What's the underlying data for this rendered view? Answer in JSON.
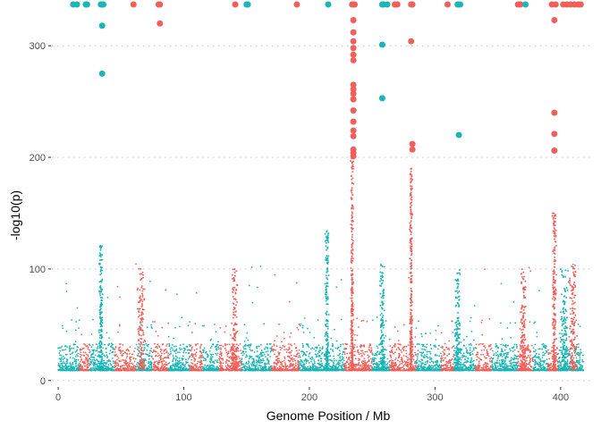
{
  "chart_data": {
    "type": "scatter",
    "title": "",
    "xlabel": "Genome Position / Mb",
    "ylabel": "-log10(p)",
    "xlim": [
      -5,
      425
    ],
    "ylim": [
      -5,
      337
    ],
    "x_ticks": [
      0,
      100,
      200,
      300,
      400
    ],
    "y_ticks": [
      0,
      100,
      200,
      300
    ],
    "grid": {
      "horizontal": true,
      "vertical": false,
      "style": "dotted"
    },
    "legend": "none",
    "colors": {
      "teal": "#1ab5b5",
      "red": "#f0605a"
    },
    "chromosome_bands": [
      {
        "start": 0,
        "end": 17,
        "color": "teal"
      },
      {
        "start": 17,
        "end": 25,
        "color": "red"
      },
      {
        "start": 25,
        "end": 45,
        "color": "teal"
      },
      {
        "start": 45,
        "end": 62,
        "color": "red"
      },
      {
        "start": 62,
        "end": 75,
        "color": "teal"
      },
      {
        "start": 75,
        "end": 88,
        "color": "red"
      },
      {
        "start": 88,
        "end": 105,
        "color": "teal"
      },
      {
        "start": 105,
        "end": 115,
        "color": "red"
      },
      {
        "start": 115,
        "end": 128,
        "color": "teal"
      },
      {
        "start": 128,
        "end": 146,
        "color": "red"
      },
      {
        "start": 146,
        "end": 170,
        "color": "teal"
      },
      {
        "start": 170,
        "end": 192,
        "color": "red"
      },
      {
        "start": 192,
        "end": 228,
        "color": "teal"
      },
      {
        "start": 228,
        "end": 250,
        "color": "red"
      },
      {
        "start": 250,
        "end": 264,
        "color": "teal"
      },
      {
        "start": 264,
        "end": 275,
        "color": "red"
      },
      {
        "start": 275,
        "end": 285,
        "color": "red"
      },
      {
        "start": 285,
        "end": 305,
        "color": "teal"
      },
      {
        "start": 305,
        "end": 315,
        "color": "red"
      },
      {
        "start": 315,
        "end": 332,
        "color": "teal"
      },
      {
        "start": 332,
        "end": 345,
        "color": "red"
      },
      {
        "start": 345,
        "end": 366,
        "color": "teal"
      },
      {
        "start": 366,
        "end": 378,
        "color": "red"
      },
      {
        "start": 378,
        "end": 390,
        "color": "teal"
      },
      {
        "start": 390,
        "end": 398,
        "color": "red"
      },
      {
        "start": 398,
        "end": 418,
        "color": "teal"
      }
    ],
    "peaks": [
      {
        "x": 34,
        "max": 122,
        "w": 1.2,
        "color": "teal"
      },
      {
        "x": 66,
        "max": 101,
        "w": 2.5,
        "color": "red"
      },
      {
        "x": 140,
        "max": 100,
        "w": 2.0,
        "color": "red"
      },
      {
        "x": 214,
        "max": 135,
        "w": 1.2,
        "color": "teal"
      },
      {
        "x": 234,
        "max": 200,
        "w": 0.9,
        "color": "red"
      },
      {
        "x": 258,
        "max": 105,
        "w": 1.5,
        "color": "teal"
      },
      {
        "x": 281,
        "max": 190,
        "w": 0.9,
        "color": "red"
      },
      {
        "x": 318,
        "max": 100,
        "w": 2.0,
        "color": "teal"
      },
      {
        "x": 370,
        "max": 102,
        "w": 2.0,
        "color": "red"
      },
      {
        "x": 395,
        "max": 150,
        "w": 1.3,
        "color": "red"
      },
      {
        "x": 403,
        "max": 100,
        "w": 2.5,
        "color": "teal"
      },
      {
        "x": 410,
        "max": 105,
        "w": 2.5,
        "color": "red"
      }
    ],
    "highlight_points": [
      {
        "x": 12,
        "y": 338,
        "color": "teal"
      },
      {
        "x": 15,
        "y": 338,
        "color": "teal"
      },
      {
        "x": 22,
        "y": 338,
        "color": "teal"
      },
      {
        "x": 23,
        "y": 338,
        "color": "teal"
      },
      {
        "x": 34,
        "y": 338,
        "color": "teal"
      },
      {
        "x": 35,
        "y": 338,
        "color": "teal"
      },
      {
        "x": 36,
        "y": 338,
        "color": "teal"
      },
      {
        "x": 35,
        "y": 318,
        "color": "teal"
      },
      {
        "x": 35,
        "y": 275,
        "color": "teal"
      },
      {
        "x": 60,
        "y": 338,
        "color": "red"
      },
      {
        "x": 80,
        "y": 338,
        "color": "red"
      },
      {
        "x": 81,
        "y": 338,
        "color": "red"
      },
      {
        "x": 81,
        "y": 320,
        "color": "red"
      },
      {
        "x": 141,
        "y": 338,
        "color": "red"
      },
      {
        "x": 150,
        "y": 338,
        "color": "teal"
      },
      {
        "x": 151,
        "y": 338,
        "color": "teal"
      },
      {
        "x": 190,
        "y": 338,
        "color": "red"
      },
      {
        "x": 215,
        "y": 338,
        "color": "teal"
      },
      {
        "x": 234,
        "y": 338,
        "color": "red"
      },
      {
        "x": 235,
        "y": 338,
        "color": "red"
      },
      {
        "x": 236,
        "y": 338,
        "color": "red"
      },
      {
        "x": 235,
        "y": 323,
        "color": "red"
      },
      {
        "x": 235,
        "y": 312,
        "color": "red"
      },
      {
        "x": 235,
        "y": 304,
        "color": "red"
      },
      {
        "x": 235,
        "y": 298,
        "color": "red"
      },
      {
        "x": 235,
        "y": 292,
        "color": "red"
      },
      {
        "x": 235,
        "y": 287,
        "color": "red"
      },
      {
        "x": 235,
        "y": 265,
        "color": "red"
      },
      {
        "x": 235,
        "y": 261,
        "color": "red"
      },
      {
        "x": 235,
        "y": 257,
        "color": "red"
      },
      {
        "x": 235,
        "y": 252,
        "color": "red"
      },
      {
        "x": 235,
        "y": 242,
        "color": "red"
      },
      {
        "x": 235,
        "y": 232,
        "color": "red"
      },
      {
        "x": 235,
        "y": 224,
        "color": "red"
      },
      {
        "x": 235,
        "y": 219,
        "color": "red"
      },
      {
        "x": 235,
        "y": 207,
        "color": "red"
      },
      {
        "x": 235,
        "y": 204,
        "color": "red"
      },
      {
        "x": 235,
        "y": 201,
        "color": "red"
      },
      {
        "x": 258,
        "y": 338,
        "color": "teal"
      },
      {
        "x": 259,
        "y": 338,
        "color": "teal"
      },
      {
        "x": 258,
        "y": 301,
        "color": "teal"
      },
      {
        "x": 258,
        "y": 253,
        "color": "teal"
      },
      {
        "x": 262,
        "y": 338,
        "color": "teal"
      },
      {
        "x": 268,
        "y": 338,
        "color": "red"
      },
      {
        "x": 270,
        "y": 338,
        "color": "red"
      },
      {
        "x": 281,
        "y": 338,
        "color": "red"
      },
      {
        "x": 282,
        "y": 338,
        "color": "red"
      },
      {
        "x": 281,
        "y": 304,
        "color": "red"
      },
      {
        "x": 282,
        "y": 212,
        "color": "red"
      },
      {
        "x": 282,
        "y": 207,
        "color": "red"
      },
      {
        "x": 310,
        "y": 338,
        "color": "red"
      },
      {
        "x": 318,
        "y": 338,
        "color": "teal"
      },
      {
        "x": 320,
        "y": 338,
        "color": "teal"
      },
      {
        "x": 319,
        "y": 220,
        "color": "teal"
      },
      {
        "x": 366,
        "y": 338,
        "color": "red"
      },
      {
        "x": 368,
        "y": 338,
        "color": "red"
      },
      {
        "x": 372,
        "y": 338,
        "color": "teal"
      },
      {
        "x": 393,
        "y": 338,
        "color": "red"
      },
      {
        "x": 396,
        "y": 338,
        "color": "red"
      },
      {
        "x": 395,
        "y": 323,
        "color": "red"
      },
      {
        "x": 395,
        "y": 240,
        "color": "red"
      },
      {
        "x": 395,
        "y": 221,
        "color": "red"
      },
      {
        "x": 395,
        "y": 206,
        "color": "red"
      },
      {
        "x": 402,
        "y": 338,
        "color": "red"
      },
      {
        "x": 405,
        "y": 338,
        "color": "red"
      },
      {
        "x": 408,
        "y": 338,
        "color": "red"
      },
      {
        "x": 411,
        "y": 338,
        "color": "red"
      },
      {
        "x": 414,
        "y": 338,
        "color": "red"
      },
      {
        "x": 416,
        "y": 338,
        "color": "red"
      }
    ]
  }
}
